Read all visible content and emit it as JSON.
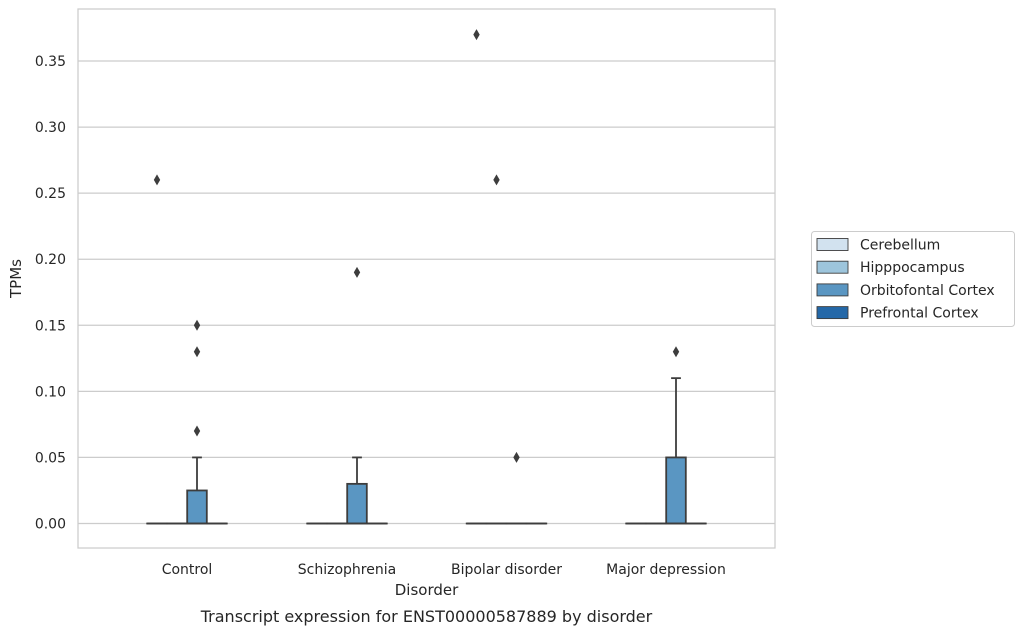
{
  "chart_data": {
    "type": "box",
    "title": "Transcript expression for ENST00000587889 by disorder",
    "xlabel": "Disorder",
    "ylabel": "TPMs",
    "categories": [
      "Control",
      "Schizophrenia",
      "Bipolar disorder",
      "Major depression"
    ],
    "ylim": [
      -0.018,
      0.388
    ],
    "yticks": [
      "0.00",
      "0.05",
      "0.10",
      "0.15",
      "0.20",
      "0.25",
      "0.30",
      "0.35"
    ],
    "grid": true,
    "legend_position": "right",
    "series": [
      {
        "name": "Cerebellum",
        "color": "#d2e2ef",
        "boxes": [
          {
            "q1": 0,
            "median": 0,
            "q3": 0,
            "whisker_low": 0,
            "whisker_high": 0,
            "outliers": [
              0.26
            ]
          },
          {
            "q1": 0,
            "median": 0,
            "q3": 0,
            "whisker_low": 0,
            "whisker_high": 0,
            "outliers": []
          },
          {
            "q1": 0,
            "median": 0,
            "q3": 0,
            "whisker_low": 0,
            "whisker_high": 0,
            "outliers": [
              0.37
            ]
          },
          {
            "q1": 0,
            "median": 0,
            "q3": 0,
            "whisker_low": 0,
            "whisker_high": 0,
            "outliers": []
          }
        ]
      },
      {
        "name": "Hipppocampus",
        "color": "#9dc5dc",
        "boxes": [
          {
            "q1": 0,
            "median": 0,
            "q3": 0,
            "whisker_low": 0,
            "whisker_high": 0,
            "outliers": []
          },
          {
            "q1": 0,
            "median": 0,
            "q3": 0,
            "whisker_low": 0,
            "whisker_high": 0,
            "outliers": []
          },
          {
            "q1": 0,
            "median": 0,
            "q3": 0,
            "whisker_low": 0,
            "whisker_high": 0,
            "outliers": [
              0.26
            ]
          },
          {
            "q1": 0,
            "median": 0,
            "q3": 0,
            "whisker_low": 0,
            "whisker_high": 0,
            "outliers": []
          }
        ]
      },
      {
        "name": "Orbitofontal Cortex",
        "color": "#5a96c2",
        "boxes": [
          {
            "q1": 0,
            "median": 0,
            "q3": 0.025,
            "whisker_low": 0,
            "whisker_high": 0.05,
            "outliers": [
              0.07,
              0.13,
              0.15
            ]
          },
          {
            "q1": 0,
            "median": 0,
            "q3": 0.03,
            "whisker_low": 0,
            "whisker_high": 0.05,
            "outliers": [
              0.19
            ]
          },
          {
            "q1": 0,
            "median": 0,
            "q3": 0,
            "whisker_low": 0,
            "whisker_high": 0,
            "outliers": [
              0.05
            ]
          },
          {
            "q1": 0,
            "median": 0,
            "q3": 0.05,
            "whisker_low": 0,
            "whisker_high": 0.11,
            "outliers": [
              0.13
            ]
          }
        ]
      },
      {
        "name": "Prefrontal Cortex",
        "color": "#2468a8",
        "boxes": [
          {
            "q1": 0,
            "median": 0,
            "q3": 0,
            "whisker_low": 0,
            "whisker_high": 0,
            "outliers": []
          },
          {
            "q1": 0,
            "median": 0,
            "q3": 0,
            "whisker_low": 0,
            "whisker_high": 0,
            "outliers": []
          },
          {
            "q1": 0,
            "median": 0,
            "q3": 0,
            "whisker_low": 0,
            "whisker_high": 0,
            "outliers": []
          },
          {
            "q1": 0,
            "median": 0,
            "q3": 0,
            "whisker_low": 0,
            "whisker_high": 0,
            "outliers": []
          }
        ]
      }
    ]
  }
}
